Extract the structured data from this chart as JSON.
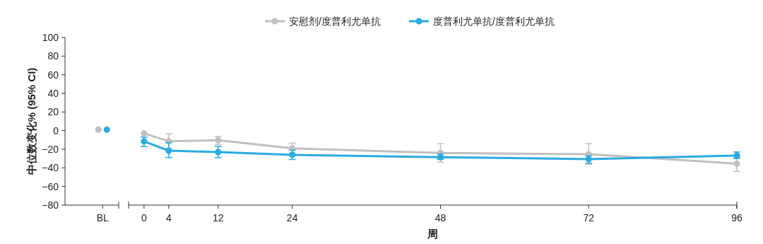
{
  "chart_data": [
    {
      "type": "line",
      "categories": [
        "BL"
      ],
      "ylabel": "中位数变化% (95% CI)",
      "ylim": [
        -80,
        100
      ],
      "yticks": [
        -80,
        -60,
        -40,
        -20,
        0,
        20,
        40,
        60,
        80,
        100
      ],
      "marker": "circle",
      "series": [
        {
          "color": "#c0c0c0",
          "values": [
            1
          ]
        },
        {
          "color": "#29abe2",
          "values": [
            1
          ]
        }
      ]
    },
    {
      "type": "line",
      "xlabel": "周",
      "xlim": [
        -2.5,
        96
      ],
      "xticks": [
        0,
        4,
        12,
        24,
        48,
        72,
        96
      ],
      "ylim": [
        -80,
        100
      ],
      "tick_labels": "x",
      "legend": "top",
      "marker": "circle",
      "series": [
        {
          "name": "安慰剂/度普利尤单抗",
          "color": "#c0c0c0",
          "x": [
            0,
            4,
            12,
            24,
            48,
            72,
            96
          ],
          "values": [
            -3,
            -11.4,
            -10.4,
            -19,
            -24,
            -25.3,
            -35.5
          ],
          "errors": [
            null,
            [
              -19,
              -3.5
            ],
            [
              -15,
              -6.3
            ],
            [
              -24,
              -13.4
            ],
            [
              -34,
              -14
            ],
            [
              -36,
              -14
            ],
            [
              -43.8,
              -28
            ]
          ]
        },
        {
          "name": "度普利尤单抗/度普利尤单抗",
          "color": "#29abe2",
          "x": [
            0,
            4,
            12,
            24,
            48,
            72,
            96
          ],
          "values": [
            -11.5,
            -21.5,
            -23,
            -26,
            -28.6,
            -30.6,
            -26.8
          ],
          "errors": [
            [
              -17,
              -7
            ],
            [
              -29,
              -13
            ],
            [
              -29,
              -17
            ],
            [
              -31,
              -21
            ],
            [
              -31,
              -25
            ],
            [
              -35,
              -27
            ],
            [
              -30,
              -23
            ]
          ]
        }
      ]
    }
  ]
}
